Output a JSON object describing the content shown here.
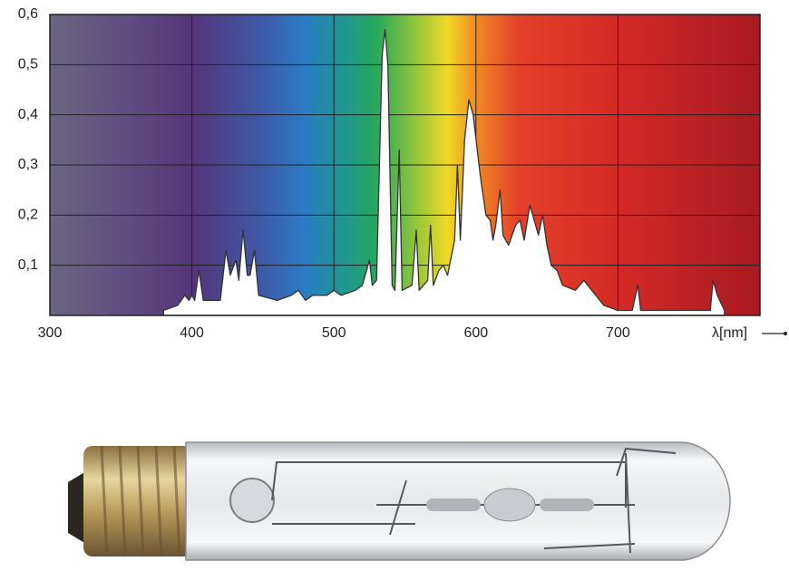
{
  "chart_data": {
    "type": "area",
    "xlabel": "λ[nm]",
    "x": [
      380,
      390,
      395,
      398,
      400,
      402,
      405,
      408,
      420,
      424,
      427,
      431,
      433,
      436,
      439,
      441,
      444,
      447,
      460,
      470,
      475,
      480,
      485,
      495,
      500,
      505,
      515,
      520,
      525,
      527,
      530,
      534,
      536,
      538,
      541,
      543,
      546,
      548,
      555,
      558,
      560,
      566,
      568,
      570,
      574,
      577,
      580,
      585,
      587,
      589,
      592,
      595,
      598,
      603,
      607,
      610,
      612,
      614,
      617,
      619,
      623,
      628,
      631,
      634,
      638,
      641,
      644,
      647,
      650,
      653,
      657,
      661,
      670,
      676,
      690,
      700,
      710,
      714,
      716,
      730,
      740,
      765,
      767,
      770,
      775
    ],
    "values": [
      0.01,
      0.02,
      0.04,
      0.03,
      0.04,
      0.03,
      0.09,
      0.03,
      0.03,
      0.13,
      0.08,
      0.11,
      0.07,
      0.17,
      0.08,
      0.08,
      0.13,
      0.04,
      0.03,
      0.04,
      0.05,
      0.03,
      0.04,
      0.04,
      0.05,
      0.04,
      0.05,
      0.06,
      0.11,
      0.06,
      0.07,
      0.52,
      0.57,
      0.5,
      0.06,
      0.05,
      0.33,
      0.05,
      0.06,
      0.17,
      0.05,
      0.07,
      0.18,
      0.06,
      0.09,
      0.1,
      0.08,
      0.15,
      0.3,
      0.15,
      0.35,
      0.43,
      0.4,
      0.28,
      0.2,
      0.19,
      0.15,
      0.18,
      0.25,
      0.16,
      0.14,
      0.18,
      0.19,
      0.15,
      0.22,
      0.19,
      0.16,
      0.2,
      0.14,
      0.1,
      0.09,
      0.06,
      0.05,
      0.07,
      0.02,
      0.01,
      0.01,
      0.06,
      0.01,
      0.01,
      0.01,
      0.01,
      0.07,
      0.04,
      0.01
    ],
    "color": "#ffffff",
    "xlim": [
      300,
      800
    ],
    "xticks": [
      300,
      400,
      500,
      600,
      700
    ],
    "ylim": [
      0,
      0.6
    ],
    "yticks": [
      {
        "value": 0.1,
        "label": "0,1"
      },
      {
        "value": 0.2,
        "label": "0,2"
      },
      {
        "value": 0.3,
        "label": "0,3"
      },
      {
        "value": 0.4,
        "label": "0,4"
      },
      {
        "value": 0.5,
        "label": "0,5"
      },
      {
        "value": 0.6,
        "label": "0,6"
      }
    ],
    "grid": true
  }
}
